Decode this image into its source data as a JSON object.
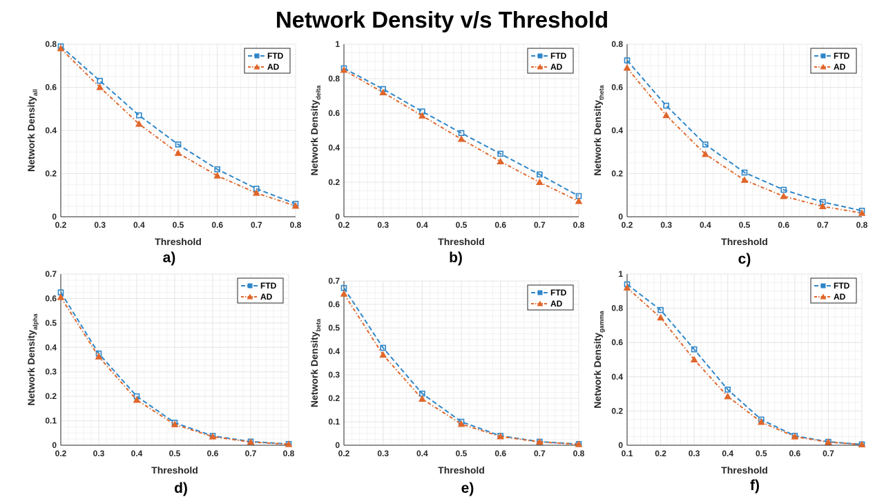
{
  "title": "Network Density v/s Threshold",
  "colors": {
    "FTD": "#2e86c8",
    "AD": "#e0662a",
    "grid": "#e6e6e6",
    "axis": "#262626"
  },
  "chart_data": [
    {
      "type": "line",
      "panel_label": "a)",
      "xlabel": "Threshold",
      "ylabel": "Network Density",
      "ylabel_sub": "all",
      "xlim": [
        0.2,
        0.8
      ],
      "ylim": [
        0,
        0.8
      ],
      "xticks": [
        "0.2",
        "0.3",
        "0.4",
        "0.5",
        "0.6",
        "0.7",
        "0.8"
      ],
      "yticks": [
        "0",
        "0.2",
        "0.4",
        "0.6",
        "0.8"
      ],
      "x": [
        0.2,
        0.3,
        0.4,
        0.5,
        0.6,
        0.7,
        0.8
      ],
      "series": [
        {
          "name": "FTD",
          "values": [
            0.79,
            0.63,
            0.47,
            0.335,
            0.22,
            0.13,
            0.06
          ]
        },
        {
          "name": "AD",
          "values": [
            0.78,
            0.6,
            0.43,
            0.295,
            0.19,
            0.11,
            0.05
          ]
        }
      ],
      "legend": "top-right"
    },
    {
      "type": "line",
      "panel_label": "b)",
      "xlabel": "Threshold",
      "ylabel": "Network Density",
      "ylabel_sub": "delta",
      "xlim": [
        0.2,
        0.8
      ],
      "ylim": [
        0,
        1
      ],
      "xticks": [
        "0.2",
        "0.3",
        "0.4",
        "0.5",
        "0.6",
        "0.7",
        "0.8"
      ],
      "yticks": [
        "0",
        "0.2",
        "0.4",
        "0.6",
        "0.8",
        "1"
      ],
      "x": [
        0.2,
        0.3,
        0.4,
        0.5,
        0.6,
        0.7,
        0.8
      ],
      "series": [
        {
          "name": "FTD",
          "values": [
            0.86,
            0.74,
            0.61,
            0.485,
            0.365,
            0.245,
            0.12
          ]
        },
        {
          "name": "AD",
          "values": [
            0.85,
            0.72,
            0.585,
            0.45,
            0.32,
            0.2,
            0.09
          ]
        }
      ],
      "legend": "top-right"
    },
    {
      "type": "line",
      "panel_label": "c)",
      "xlabel": "Threshold",
      "ylabel": "Network Density",
      "ylabel_sub": "theta",
      "xlim": [
        0.2,
        0.8
      ],
      "ylim": [
        0,
        0.8
      ],
      "xticks": [
        "0.2",
        "0.3",
        "0.4",
        "0.5",
        "0.6",
        "0.7",
        "0.8"
      ],
      "yticks": [
        "0",
        "0.2",
        "0.4",
        "0.6",
        "0.8"
      ],
      "x": [
        0.2,
        0.3,
        0.4,
        0.5,
        0.6,
        0.7,
        0.8
      ],
      "series": [
        {
          "name": "FTD",
          "values": [
            0.725,
            0.515,
            0.335,
            0.205,
            0.125,
            0.068,
            0.028
          ]
        },
        {
          "name": "AD",
          "values": [
            0.69,
            0.47,
            0.29,
            0.17,
            0.095,
            0.048,
            0.017
          ]
        }
      ],
      "legend": "top-right"
    },
    {
      "type": "line",
      "panel_label": "d)",
      "xlabel": "Threshold",
      "ylabel": "Network Density",
      "ylabel_sub": "alpha",
      "xlim": [
        0.2,
        0.8
      ],
      "ylim": [
        0,
        0.7
      ],
      "xticks": [
        "0.2",
        "0.3",
        "0.4",
        "0.5",
        "0.6",
        "0.7",
        "0.8"
      ],
      "yticks": [
        "0",
        "0.1",
        "0.2",
        "0.3",
        "0.4",
        "0.5",
        "0.6",
        "0.7"
      ],
      "x": [
        0.2,
        0.3,
        0.4,
        0.5,
        0.6,
        0.7,
        0.8
      ],
      "series": [
        {
          "name": "FTD",
          "values": [
            0.625,
            0.375,
            0.2,
            0.092,
            0.038,
            0.015,
            0.005
          ]
        },
        {
          "name": "AD",
          "values": [
            0.605,
            0.362,
            0.185,
            0.085,
            0.035,
            0.013,
            0.004
          ]
        }
      ],
      "legend": "top-right"
    },
    {
      "type": "line",
      "panel_label": "e)",
      "xlabel": "Threshold",
      "ylabel": "Network Density",
      "ylabel_sub": "beta",
      "xlim": [
        0.2,
        0.8
      ],
      "ylim": [
        0,
        0.7
      ],
      "xticks": [
        "0.2",
        "0.3",
        "0.4",
        "0.5",
        "0.6",
        "0.7",
        "0.8"
      ],
      "yticks": [
        "0",
        "0.1",
        "0.2",
        "0.3",
        "0.4",
        "0.5",
        "0.6",
        "0.7"
      ],
      "x": [
        0.2,
        0.3,
        0.4,
        0.5,
        0.6,
        0.7,
        0.8
      ],
      "series": [
        {
          "name": "FTD",
          "values": [
            0.67,
            0.415,
            0.22,
            0.1,
            0.04,
            0.015,
            0.005
          ]
        },
        {
          "name": "AD",
          "values": [
            0.645,
            0.385,
            0.197,
            0.09,
            0.037,
            0.014,
            0.004
          ]
        }
      ],
      "legend": "top-right"
    },
    {
      "type": "line",
      "panel_label": "f)",
      "xlabel": "Threshold",
      "ylabel": "Network Density",
      "ylabel_sub": "gamma",
      "xlim": [
        0.1,
        0.8
      ],
      "ylim": [
        0,
        1
      ],
      "xticks": [
        "0.1",
        "0.2",
        "0.3",
        "0.4",
        "0.5",
        "0.6",
        "0.7"
      ],
      "yticks": [
        "0",
        "0.2",
        "0.4",
        "0.6",
        "0.8",
        "1"
      ],
      "x": [
        0.1,
        0.2,
        0.3,
        0.4,
        0.5,
        0.6,
        0.7,
        0.8
      ],
      "series": [
        {
          "name": "FTD",
          "values": [
            0.94,
            0.79,
            0.56,
            0.325,
            0.15,
            0.055,
            0.02,
            0.005
          ]
        },
        {
          "name": "AD",
          "values": [
            0.92,
            0.745,
            0.5,
            0.285,
            0.135,
            0.05,
            0.018,
            0.004
          ]
        }
      ],
      "legend": "top-right"
    }
  ]
}
